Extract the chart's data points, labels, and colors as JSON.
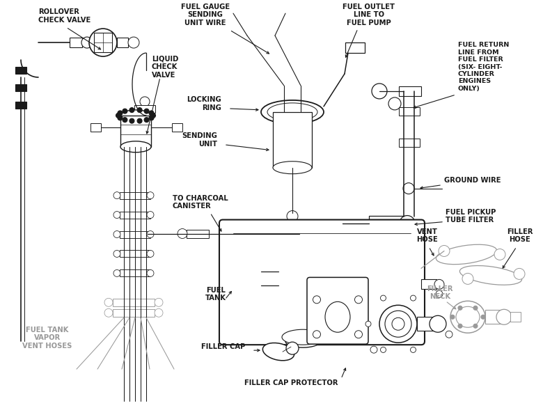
{
  "bg_color": "#ffffff",
  "line_color": "#1a1a1a",
  "gray_color": "#999999",
  "fig_w": 8.04,
  "fig_h": 5.86,
  "xlim": [
    0,
    804
  ],
  "ylim": [
    0,
    586
  ]
}
